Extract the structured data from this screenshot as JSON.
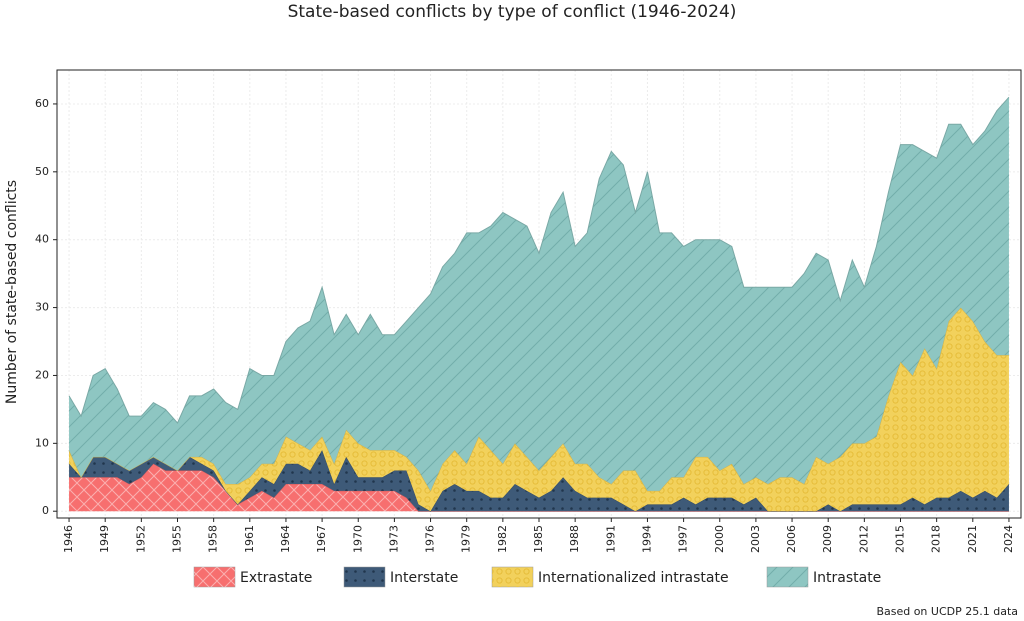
{
  "chart_data": {
    "type": "stacked-area",
    "title": "State-based conflicts by type of conflict (1946-2024)",
    "y_label": "Number of state-based conflicts",
    "source": "Based on UCDP 25.1 data",
    "x": [
      1946,
      1947,
      1948,
      1949,
      1950,
      1951,
      1952,
      1953,
      1954,
      1955,
      1956,
      1957,
      1958,
      1959,
      1960,
      1961,
      1962,
      1963,
      1964,
      1965,
      1966,
      1967,
      1968,
      1969,
      1970,
      1971,
      1972,
      1973,
      1974,
      1975,
      1976,
      1977,
      1978,
      1979,
      1980,
      1981,
      1982,
      1983,
      1984,
      1985,
      1986,
      1987,
      1988,
      1989,
      1990,
      1991,
      1992,
      1993,
      1994,
      1995,
      1996,
      1997,
      1998,
      1999,
      2000,
      2001,
      2002,
      2003,
      2004,
      2005,
      2006,
      2007,
      2008,
      2009,
      2010,
      2011,
      2012,
      2013,
      2014,
      2015,
      2016,
      2017,
      2018,
      2019,
      2020,
      2021,
      2022,
      2023,
      2024
    ],
    "series": [
      {
        "name": "Extrastate",
        "color": "#f76f6f",
        "pattern": "cross",
        "values": [
          5,
          5,
          5,
          5,
          5,
          4,
          5,
          7,
          6,
          6,
          6,
          6,
          5,
          3,
          1,
          2,
          3,
          2,
          4,
          4,
          4,
          4,
          3,
          3,
          3,
          3,
          3,
          3,
          2,
          0,
          0,
          0,
          0,
          0,
          0,
          0,
          0,
          0,
          0,
          0,
          0,
          0,
          0,
          0,
          0,
          0,
          0,
          0,
          0,
          0,
          0,
          0,
          0,
          0,
          0,
          0,
          0,
          0,
          0,
          0,
          0,
          0,
          0,
          0,
          0,
          0,
          0,
          0,
          0,
          0,
          0,
          0,
          0,
          0,
          0,
          0,
          0,
          0,
          0
        ]
      },
      {
        "name": "Interstate",
        "color": "#3e5a78",
        "pattern": "dots",
        "values": [
          2,
          0,
          3,
          3,
          2,
          2,
          2,
          1,
          1,
          0,
          2,
          1,
          1,
          0,
          0,
          1,
          2,
          2,
          3,
          3,
          2,
          5,
          1,
          5,
          2,
          2,
          2,
          3,
          4,
          1,
          0,
          3,
          4,
          3,
          3,
          2,
          2,
          4,
          3,
          2,
          3,
          5,
          3,
          2,
          2,
          2,
          1,
          0,
          1,
          1,
          1,
          2,
          1,
          2,
          2,
          2,
          1,
          2,
          0,
          0,
          0,
          0,
          0,
          1,
          0,
          1,
          1,
          1,
          1,
          1,
          2,
          1,
          2,
          2,
          3,
          2,
          3,
          2,
          4
        ]
      },
      {
        "name": "Internationalized intrastate",
        "color": "#f2d15c",
        "pattern": "rings",
        "values": [
          2,
          0,
          0,
          0,
          0,
          0,
          0,
          0,
          0,
          0,
          0,
          1,
          1,
          1,
          3,
          2,
          2,
          3,
          4,
          3,
          3,
          2,
          3,
          4,
          5,
          4,
          4,
          3,
          2,
          5,
          3,
          4,
          5,
          4,
          8,
          7,
          5,
          6,
          5,
          4,
          5,
          5,
          4,
          5,
          3,
          2,
          5,
          6,
          2,
          2,
          4,
          3,
          7,
          6,
          4,
          5,
          3,
          3,
          4,
          5,
          5,
          4,
          8,
          6,
          8,
          9,
          9,
          10,
          16,
          21,
          18,
          23,
          19,
          26,
          27,
          26,
          22,
          21,
          19
        ]
      },
      {
        "name": "Intrastate",
        "color": "#8ec6c2",
        "pattern": "diag",
        "values": [
          8,
          9,
          12,
          13,
          11,
          8,
          7,
          8,
          8,
          7,
          9,
          9,
          11,
          12,
          11,
          16,
          13,
          13,
          14,
          17,
          19,
          22,
          19,
          17,
          16,
          20,
          17,
          17,
          20,
          24,
          29,
          29,
          29,
          34,
          30,
          33,
          37,
          33,
          34,
          32,
          36,
          37,
          32,
          34,
          44,
          49,
          45,
          38,
          47,
          38,
          36,
          34,
          32,
          32,
          34,
          32,
          29,
          28,
          29,
          28,
          28,
          31,
          30,
          30,
          23,
          27,
          23,
          28,
          30,
          32,
          34,
          29,
          31,
          29,
          27,
          26,
          31,
          36,
          38
        ]
      }
    ],
    "xlim": [
      1945,
      2025
    ],
    "xticks": [
      1946,
      1949,
      1952,
      1955,
      1958,
      1961,
      1964,
      1967,
      1970,
      1973,
      1976,
      1979,
      1982,
      1985,
      1988,
      1991,
      1994,
      1997,
      2000,
      2003,
      2006,
      2009,
      2012,
      2015,
      2018,
      2021,
      2024
    ],
    "ylim": [
      -1,
      65
    ],
    "yticks": [
      0,
      10,
      20,
      30,
      40,
      50,
      60
    ],
    "grid": true
  }
}
